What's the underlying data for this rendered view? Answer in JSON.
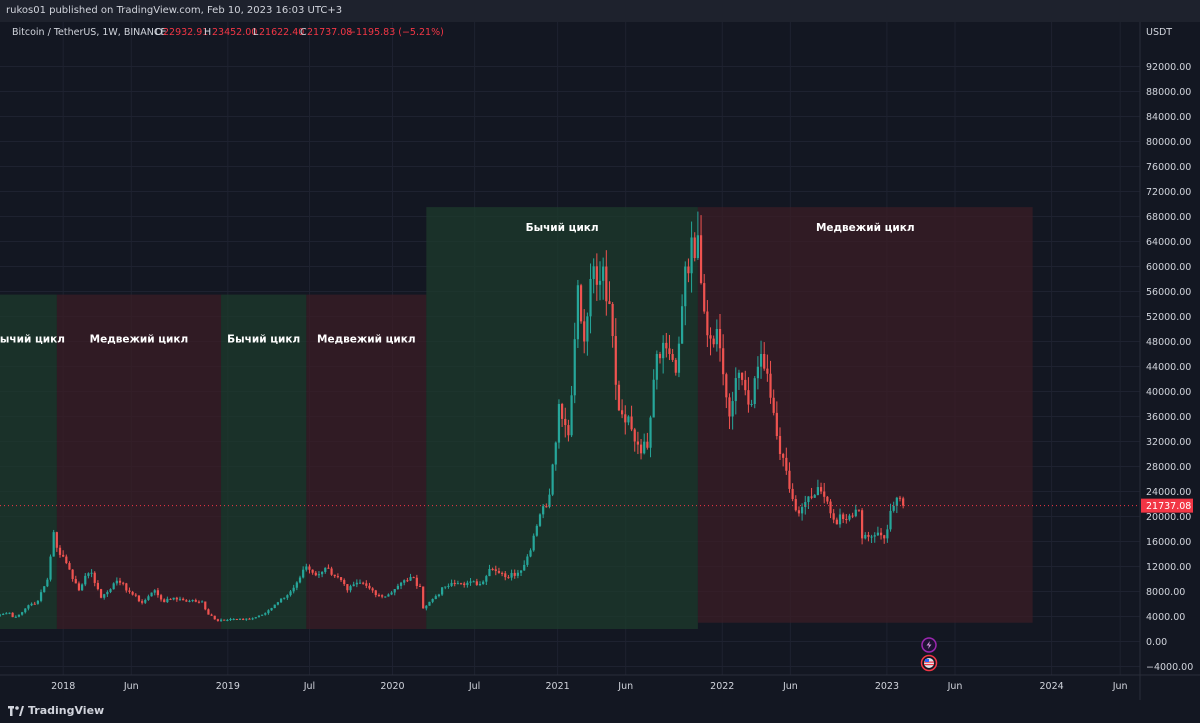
{
  "header": {
    "publisher_line": "rukos01 published on TradingView.com, Feb 10, 2023 16:03 UTC+3"
  },
  "legend": {
    "symbol": "Bitcoin / TetherUS, 1W, BINANCE",
    "open_label": "O",
    "open": "22932.91",
    "high_label": "H",
    "high": "23452.00",
    "low_label": "L",
    "low": "21622.40",
    "close_label": "C",
    "close": "21737.08",
    "change": "−1195.83 (−5.21%)"
  },
  "axis": {
    "currency": "USDT",
    "last_price_label": "21737.08"
  },
  "footer": {
    "brand": "TradingView"
  },
  "chart_data": {
    "type": "candlestick",
    "symbol": "BTCUSDT",
    "interval": "1W",
    "exchange": "BINANCE",
    "ylim": [
      -4000,
      96000
    ],
    "y_ticks": [
      "−4000.00",
      "0.00",
      "4000.00",
      "8000.00",
      "12000.00",
      "16000.00",
      "20000.00",
      "24000.00",
      "28000.00",
      "32000.00",
      "36000.00",
      "40000.00",
      "44000.00",
      "48000.00",
      "52000.00",
      "56000.00",
      "60000.00",
      "64000.00",
      "68000.00",
      "72000.00",
      "76000.00",
      "80000.00",
      "84000.00",
      "88000.00",
      "92000.00"
    ],
    "y_tick_values": [
      -4000,
      0,
      4000,
      8000,
      12000,
      16000,
      20000,
      24000,
      28000,
      32000,
      36000,
      40000,
      44000,
      48000,
      52000,
      56000,
      60000,
      64000,
      68000,
      72000,
      76000,
      80000,
      84000,
      88000,
      92000
    ],
    "x_range": [
      "2017-08-14",
      "2024-07-15"
    ],
    "x_ticks": [
      {
        "label": "2018",
        "date": "2018-01-01"
      },
      {
        "label": "Jun",
        "date": "2018-06-01"
      },
      {
        "label": "2019",
        "date": "2019-01-01"
      },
      {
        "label": "Jul",
        "date": "2019-07-01"
      },
      {
        "label": "2020",
        "date": "2020-01-01"
      },
      {
        "label": "Jul",
        "date": "2020-07-01"
      },
      {
        "label": "2021",
        "date": "2021-01-01"
      },
      {
        "label": "Jun",
        "date": "2021-06-01"
      },
      {
        "label": "2022",
        "date": "2022-01-01"
      },
      {
        "label": "Jun",
        "date": "2022-06-01"
      },
      {
        "label": "2023",
        "date": "2023-01-01"
      },
      {
        "label": "Jun",
        "date": "2023-06-01"
      },
      {
        "label": "2024",
        "date": "2024-01-01"
      },
      {
        "label": "Jun",
        "date": "2024-06-01"
      }
    ],
    "last_price": 21737.08,
    "colors": {
      "up": "#26a69a",
      "down": "#ef5350",
      "bull_zone": "#1d3b2c",
      "bear_zone": "#3b1e26",
      "last_price": "#f23645"
    },
    "zones": [
      {
        "label": "Бычий цикл",
        "kind": "bull",
        "start": "2017-08-14",
        "end": "2017-12-18",
        "low": 2000,
        "high": 55500
      },
      {
        "label": "Медвежий цикл",
        "kind": "bear",
        "start": "2017-12-18",
        "end": "2018-12-17",
        "low": 2000,
        "high": 55500
      },
      {
        "label": "Бычий цикл",
        "kind": "bull",
        "start": "2018-12-17",
        "end": "2019-06-24",
        "low": 2000,
        "high": 55500
      },
      {
        "label": "Медвежий цикл",
        "kind": "bear",
        "start": "2019-06-24",
        "end": "2020-03-16",
        "low": 2000,
        "high": 55500
      },
      {
        "label": "Бычий цикл",
        "kind": "bull",
        "start": "2020-03-16",
        "end": "2021-11-08",
        "low": 2000,
        "high": 69500
      },
      {
        "label": "Медвежий цикл",
        "kind": "bear",
        "start": "2021-11-08",
        "end": "2023-11-20",
        "low": 3000,
        "high": 69500
      }
    ],
    "price_anchors": [
      [
        "2017-08-14",
        4300
      ],
      [
        "2017-09-04",
        4600
      ],
      [
        "2017-09-11",
        3900
      ],
      [
        "2017-09-25",
        4300
      ],
      [
        "2017-10-16",
        5800
      ],
      [
        "2017-11-06",
        6500
      ],
      [
        "2017-11-27",
        9900
      ],
      [
        "2017-12-11",
        17500
      ],
      [
        "2017-12-18",
        15000
      ],
      [
        "2018-01-15",
        11500
      ],
      [
        "2018-02-05",
        8200
      ],
      [
        "2018-02-19",
        10500
      ],
      [
        "2018-03-05",
        11000
      ],
      [
        "2018-03-26",
        7000
      ],
      [
        "2018-04-23",
        9300
      ],
      [
        "2018-05-07",
        9400
      ],
      [
        "2018-06-04",
        7500
      ],
      [
        "2018-06-25",
        6200
      ],
      [
        "2018-07-23",
        8200
      ],
      [
        "2018-08-13",
        6300
      ],
      [
        "2018-09-03",
        7000
      ],
      [
        "2018-10-08",
        6500
      ],
      [
        "2018-11-05",
        6400
      ],
      [
        "2018-11-19",
        4300
      ],
      [
        "2018-12-10",
        3300
      ],
      [
        "2019-01-07",
        3600
      ],
      [
        "2019-02-04",
        3500
      ],
      [
        "2019-03-04",
        3900
      ],
      [
        "2019-04-01",
        5000
      ],
      [
        "2019-05-06",
        7000
      ],
      [
        "2019-05-27",
        8600
      ],
      [
        "2019-06-24",
        12000
      ],
      [
        "2019-07-15",
        10600
      ],
      [
        "2019-08-05",
        11800
      ],
      [
        "2019-09-02",
        10300
      ],
      [
        "2019-09-23",
        8200
      ],
      [
        "2019-10-21",
        9400
      ],
      [
        "2019-11-11",
        8500
      ],
      [
        "2019-12-02",
        7400
      ],
      [
        "2019-12-16",
        7200
      ],
      [
        "2020-01-13",
        8900
      ],
      [
        "2020-02-10",
        10300
      ],
      [
        "2020-03-02",
        8800
      ],
      [
        "2020-03-09",
        5300
      ],
      [
        "2020-03-30",
        6800
      ],
      [
        "2020-04-27",
        8800
      ],
      [
        "2020-05-18",
        9200
      ],
      [
        "2020-06-15",
        9400
      ],
      [
        "2020-07-13",
        9200
      ],
      [
        "2020-08-03",
        11600
      ],
      [
        "2020-09-07",
        10300
      ],
      [
        "2020-10-05",
        11000
      ],
      [
        "2020-10-26",
        13600
      ],
      [
        "2020-11-16",
        18500
      ],
      [
        "2020-12-14",
        23500
      ],
      [
        "2021-01-04",
        38000
      ],
      [
        "2021-01-25",
        33000
      ],
      [
        "2021-02-15",
        57000
      ],
      [
        "2021-03-01",
        48000
      ],
      [
        "2021-03-15",
        58000
      ],
      [
        "2021-04-12",
        60000
      ],
      [
        "2021-04-26",
        54000
      ],
      [
        "2021-05-17",
        37000
      ],
      [
        "2021-06-07",
        36000
      ],
      [
        "2021-06-21",
        32000
      ],
      [
        "2021-07-19",
        31000
      ],
      [
        "2021-08-09",
        46000
      ],
      [
        "2021-09-06",
        46000
      ],
      [
        "2021-09-20",
        43000
      ],
      [
        "2021-10-11",
        60000
      ],
      [
        "2021-11-08",
        65000
      ],
      [
        "2021-11-29",
        49000
      ],
      [
        "2021-12-20",
        50000
      ],
      [
        "2022-01-17",
        36000
      ],
      [
        "2022-02-07",
        43000
      ],
      [
        "2022-03-07",
        38000
      ],
      [
        "2022-03-28",
        46000
      ],
      [
        "2022-04-18",
        39000
      ],
      [
        "2022-05-09",
        30000
      ],
      [
        "2022-06-13",
        21000
      ],
      [
        "2022-06-20",
        20500
      ],
      [
        "2022-07-18",
        23000
      ],
      [
        "2022-08-08",
        24000
      ],
      [
        "2022-09-05",
        19500
      ],
      [
        "2022-10-03",
        19500
      ],
      [
        "2022-10-31",
        21000
      ],
      [
        "2022-11-07",
        16500
      ],
      [
        "2022-12-05",
        17000
      ],
      [
        "2022-12-26",
        16500
      ],
      [
        "2023-01-09",
        20900
      ],
      [
        "2023-01-23",
        23000
      ],
      [
        "2023-01-30",
        22900
      ],
      [
        "2023-02-06",
        21737
      ]
    ]
  }
}
